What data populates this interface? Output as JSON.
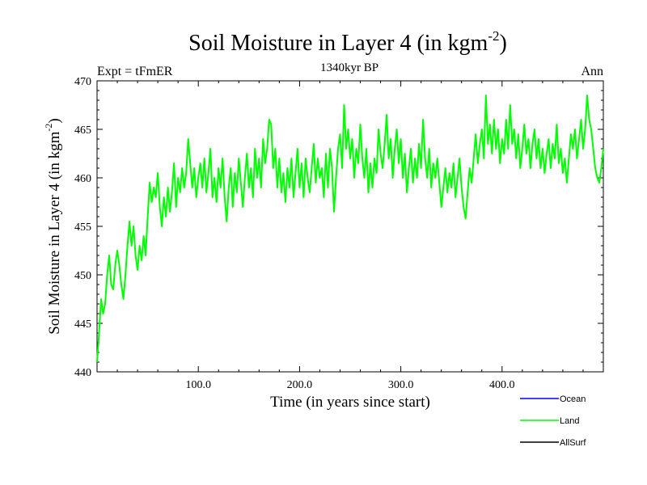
{
  "chart_data": {
    "type": "line",
    "title_main": "Soil Moisture in Layer 4 (in kgm",
    "title_exp": "-2",
    "title_close": ")",
    "subtitle_left": "Expt = tFmER",
    "subtitle_center": "1340kyr BP",
    "subtitle_right": "Ann",
    "xlabel": "Time (in years since start)",
    "ylabel_main": "Soil Moisture in Layer 4 (in kgm",
    "ylabel_exp": "-2",
    "ylabel_close": ")",
    "xlim": [
      0,
      500
    ],
    "ylim": [
      440,
      470
    ],
    "x_ticks": [
      100,
      200,
      300,
      400
    ],
    "x_tick_labels": [
      "100.0",
      "200.0",
      "300.0",
      "400.0"
    ],
    "y_ticks": [
      440,
      445,
      450,
      455,
      460,
      465,
      470
    ],
    "y_tick_labels": [
      "440",
      "445",
      "450",
      "455",
      "460",
      "465",
      "470"
    ],
    "legend": [
      {
        "name": "Ocean",
        "color": "#0000ff"
      },
      {
        "name": "Land",
        "color": "#00ff00"
      },
      {
        "name": "AllSurf",
        "color": "#000000"
      }
    ],
    "series": [
      {
        "name": "Land",
        "color": "#00ff00",
        "points": [
          [
            0,
            441
          ],
          [
            2,
            444
          ],
          [
            4,
            447.5
          ],
          [
            6,
            446
          ],
          [
            8,
            447
          ],
          [
            10,
            450
          ],
          [
            12,
            452
          ],
          [
            14,
            449
          ],
          [
            16,
            448.5
          ],
          [
            18,
            451
          ],
          [
            20,
            452.5
          ],
          [
            22,
            451
          ],
          [
            24,
            449
          ],
          [
            26,
            447.5
          ],
          [
            28,
            450
          ],
          [
            30,
            453
          ],
          [
            32,
            455.5
          ],
          [
            34,
            453
          ],
          [
            36,
            455
          ],
          [
            38,
            452
          ],
          [
            40,
            450.5
          ],
          [
            42,
            453
          ],
          [
            44,
            451.5
          ],
          [
            46,
            454
          ],
          [
            48,
            452
          ],
          [
            50,
            456
          ],
          [
            52,
            459.5
          ],
          [
            54,
            457.5
          ],
          [
            56,
            459
          ],
          [
            58,
            458
          ],
          [
            60,
            460.5
          ],
          [
            62,
            457
          ],
          [
            64,
            455
          ],
          [
            66,
            458
          ],
          [
            68,
            456
          ],
          [
            70,
            459
          ],
          [
            72,
            456.5
          ],
          [
            74,
            458.5
          ],
          [
            76,
            461.5
          ],
          [
            78,
            457
          ],
          [
            80,
            460
          ],
          [
            82,
            458.5
          ],
          [
            84,
            461
          ],
          [
            86,
            459
          ],
          [
            88,
            460.5
          ],
          [
            90,
            464
          ],
          [
            92,
            461.5
          ],
          [
            94,
            459
          ],
          [
            96,
            461
          ],
          [
            98,
            458
          ],
          [
            100,
            460
          ],
          [
            102,
            461.5
          ],
          [
            104,
            459
          ],
          [
            106,
            462
          ],
          [
            108,
            458.5
          ],
          [
            110,
            460.5
          ],
          [
            112,
            463
          ],
          [
            114,
            458
          ],
          [
            116,
            460
          ],
          [
            118,
            457.5
          ],
          [
            120,
            461
          ],
          [
            122,
            459
          ],
          [
            124,
            462
          ],
          [
            126,
            458
          ],
          [
            128,
            455.5
          ],
          [
            130,
            459
          ],
          [
            132,
            461
          ],
          [
            134,
            457
          ],
          [
            136,
            460.5
          ],
          [
            138,
            458.5
          ],
          [
            140,
            462
          ],
          [
            142,
            459.5
          ],
          [
            144,
            457
          ],
          [
            146,
            460
          ],
          [
            148,
            462.5
          ],
          [
            150,
            459
          ],
          [
            152,
            461
          ],
          [
            154,
            458
          ],
          [
            156,
            463
          ],
          [
            158,
            460
          ],
          [
            160,
            462
          ],
          [
            162,
            459
          ],
          [
            164,
            464
          ],
          [
            166,
            461.5
          ],
          [
            168,
            463
          ],
          [
            170,
            466
          ],
          [
            172,
            465.5
          ],
          [
            174,
            461
          ],
          [
            176,
            463
          ],
          [
            178,
            459
          ],
          [
            180,
            462
          ],
          [
            182,
            458.5
          ],
          [
            184,
            460.5
          ],
          [
            186,
            457.5
          ],
          [
            188,
            461
          ],
          [
            190,
            459
          ],
          [
            192,
            462
          ],
          [
            194,
            458
          ],
          [
            196,
            460.5
          ],
          [
            198,
            463
          ],
          [
            200,
            459
          ],
          [
            202,
            461.5
          ],
          [
            204,
            458
          ],
          [
            206,
            462
          ],
          [
            208,
            460
          ],
          [
            210,
            458.5
          ],
          [
            212,
            461
          ],
          [
            214,
            463.5
          ],
          [
            216,
            459.5
          ],
          [
            218,
            462
          ],
          [
            220,
            460
          ],
          [
            222,
            461
          ],
          [
            224,
            458
          ],
          [
            226,
            462.5
          ],
          [
            228,
            459
          ],
          [
            230,
            463
          ],
          [
            232,
            461
          ],
          [
            234,
            456.5
          ],
          [
            236,
            460
          ],
          [
            238,
            463
          ],
          [
            240,
            464.5
          ],
          [
            242,
            461
          ],
          [
            244,
            467.5
          ],
          [
            246,
            463
          ],
          [
            248,
            465
          ],
          [
            250,
            462
          ],
          [
            252,
            464
          ],
          [
            254,
            460
          ],
          [
            256,
            463
          ],
          [
            258,
            461.5
          ],
          [
            260,
            465.5
          ],
          [
            262,
            462
          ],
          [
            264,
            460
          ],
          [
            266,
            463
          ],
          [
            268,
            458.5
          ],
          [
            270,
            461.5
          ],
          [
            272,
            459
          ],
          [
            274,
            462
          ],
          [
            276,
            460.5
          ],
          [
            278,
            465
          ],
          [
            280,
            462.5
          ],
          [
            282,
            461
          ],
          [
            284,
            463.5
          ],
          [
            286,
            466.5
          ],
          [
            288,
            462
          ],
          [
            290,
            464
          ],
          [
            292,
            460
          ],
          [
            294,
            463
          ],
          [
            296,
            465
          ],
          [
            298,
            461.5
          ],
          [
            300,
            464
          ],
          [
            302,
            460
          ],
          [
            304,
            462.5
          ],
          [
            306,
            458.5
          ],
          [
            308,
            461
          ],
          [
            310,
            463
          ],
          [
            312,
            459.5
          ],
          [
            314,
            462
          ],
          [
            316,
            460
          ],
          [
            318,
            463.5
          ],
          [
            320,
            461
          ],
          [
            322,
            466
          ],
          [
            324,
            462
          ],
          [
            326,
            460
          ],
          [
            328,
            463
          ],
          [
            330,
            459
          ],
          [
            332,
            461.5
          ],
          [
            334,
            460
          ],
          [
            336,
            462
          ],
          [
            338,
            459.5
          ],
          [
            340,
            457
          ],
          [
            342,
            459
          ],
          [
            344,
            461
          ],
          [
            346,
            458.5
          ],
          [
            348,
            460.5
          ],
          [
            350,
            459
          ],
          [
            352,
            461.5
          ],
          [
            354,
            458
          ],
          [
            356,
            460
          ],
          [
            358,
            462
          ],
          [
            360,
            459
          ],
          [
            362,
            457
          ],
          [
            364,
            455.8
          ],
          [
            366,
            458.5
          ],
          [
            368,
            461
          ],
          [
            370,
            459.5
          ],
          [
            372,
            462
          ],
          [
            374,
            464.5
          ],
          [
            376,
            461.5
          ],
          [
            378,
            463.5
          ],
          [
            380,
            465
          ],
          [
            382,
            462
          ],
          [
            384,
            468.5
          ],
          [
            386,
            463.5
          ],
          [
            388,
            465.5
          ],
          [
            390,
            462.5
          ],
          [
            392,
            466
          ],
          [
            394,
            463
          ],
          [
            396,
            465
          ],
          [
            398,
            461.5
          ],
          [
            400,
            464
          ],
          [
            402,
            462.5
          ],
          [
            404,
            466
          ],
          [
            406,
            463
          ],
          [
            408,
            467.5
          ],
          [
            410,
            463.5
          ],
          [
            412,
            465
          ],
          [
            414,
            462
          ],
          [
            416,
            464.5
          ],
          [
            418,
            461
          ],
          [
            420,
            463
          ],
          [
            422,
            465.5
          ],
          [
            424,
            462.5
          ],
          [
            426,
            464
          ],
          [
            428,
            461
          ],
          [
            430,
            463.5
          ],
          [
            432,
            465
          ],
          [
            434,
            462
          ],
          [
            436,
            464
          ],
          [
            438,
            461
          ],
          [
            440,
            463
          ],
          [
            442,
            460.5
          ],
          [
            444,
            462.5
          ],
          [
            446,
            464
          ],
          [
            448,
            461
          ],
          [
            450,
            463.5
          ],
          [
            452,
            462
          ],
          [
            454,
            465.5
          ],
          [
            456,
            461.5
          ],
          [
            458,
            463
          ],
          [
            460,
            460.5
          ],
          [
            462,
            462
          ],
          [
            464,
            459.5
          ],
          [
            466,
            462
          ],
          [
            468,
            464.5
          ],
          [
            470,
            463
          ],
          [
            472,
            465
          ],
          [
            474,
            462
          ],
          [
            476,
            464
          ],
          [
            478,
            466
          ],
          [
            480,
            463
          ],
          [
            482,
            465
          ],
          [
            484,
            468.5
          ],
          [
            486,
            466
          ],
          [
            488,
            465
          ],
          [
            490,
            463
          ],
          [
            492,
            461
          ],
          [
            494,
            460
          ],
          [
            496,
            459.5
          ],
          [
            498,
            461
          ],
          [
            500,
            463
          ]
        ]
      }
    ]
  }
}
